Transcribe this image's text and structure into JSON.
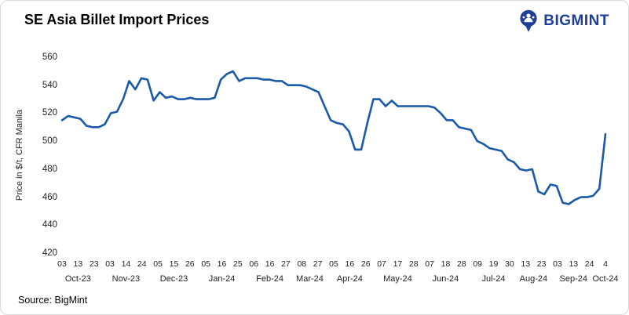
{
  "title": "SE Asia Billet Import Prices",
  "logo": {
    "text": "BIGMINT"
  },
  "source": "Source: BigMint",
  "chart_data": {
    "type": "line",
    "title": "SE Asia Billet Import Prices",
    "xlabel": "",
    "ylabel": "Price in $/t, CFR Manila",
    "ylim": [
      420,
      560
    ],
    "y_ticks": [
      420,
      440,
      460,
      480,
      500,
      520,
      540,
      560
    ],
    "grid": false,
    "legend": false,
    "line_color": "#1a5aa8",
    "x_tick_labels": [
      "03",
      "13",
      "23",
      "03",
      "14",
      "24",
      "05",
      "15",
      "26",
      "05",
      "16",
      "25",
      "06",
      "16",
      "27",
      "08",
      "27",
      "05",
      "16",
      "26",
      "07",
      "17",
      "28",
      "07",
      "18",
      "28",
      "09",
      "19",
      "30",
      "13",
      "23",
      "03",
      "13",
      "24",
      "4"
    ],
    "months": [
      {
        "label": "Oct-23",
        "span": 3
      },
      {
        "label": "Nov-23",
        "span": 3
      },
      {
        "label": "Dec-23",
        "span": 3
      },
      {
        "label": "Jan-24",
        "span": 3
      },
      {
        "label": "Feb-24",
        "span": 3
      },
      {
        "label": "Mar-24",
        "span": 2
      },
      {
        "label": "Apr-24",
        "span": 3
      },
      {
        "label": "May-24",
        "span": 3
      },
      {
        "label": "Jun-24",
        "span": 3
      },
      {
        "label": "Jul-24",
        "span": 3
      },
      {
        "label": "Aug-24",
        "span": 2
      },
      {
        "label": "Sep-24",
        "span": 3
      },
      {
        "label": "Oct-24",
        "span": 1
      }
    ],
    "values": [
      515,
      518,
      517,
      516,
      511,
      510,
      510,
      512,
      520,
      521,
      530,
      543,
      537,
      545,
      544,
      529,
      535,
      531,
      532,
      530,
      530,
      531,
      530,
      530,
      530,
      531,
      544,
      548,
      550,
      543,
      545,
      545,
      545,
      544,
      544,
      543,
      543,
      540,
      540,
      540,
      539,
      537,
      535,
      525,
      515,
      513,
      512,
      507,
      494,
      494,
      513,
      530,
      530,
      525,
      529,
      525,
      525,
      525,
      525,
      525,
      525,
      524,
      520,
      515,
      515,
      510,
      509,
      508,
      500,
      498,
      495,
      494,
      493,
      487,
      485,
      480,
      479,
      480,
      464,
      462,
      469,
      468,
      456,
      455,
      458,
      460,
      460,
      461,
      466,
      505
    ]
  }
}
